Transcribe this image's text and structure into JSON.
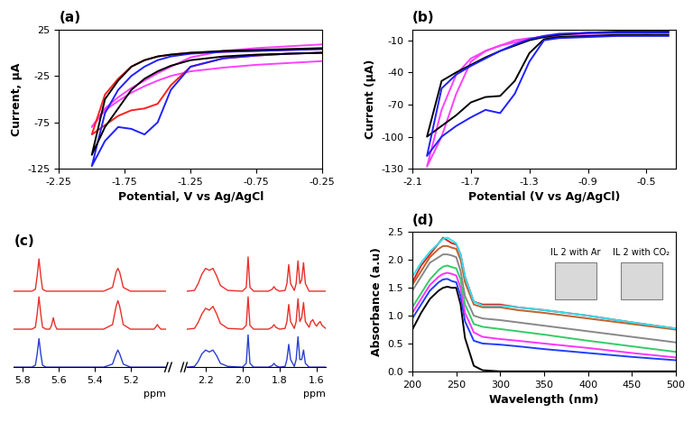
{
  "chart_data": [
    {
      "type": "line",
      "title": "(a)",
      "x_label": "Potential, V vs Ag/AgCl",
      "y_label": "Current, µA",
      "xlim": [
        -2.25,
        -0.25
      ],
      "xticks": [
        -2.25,
        -1.75,
        -1.25,
        -0.75,
        -0.25
      ],
      "ylim": [
        -125,
        25
      ],
      "yticks": [
        -125,
        -75,
        -25,
        25
      ],
      "x": [
        -0.25,
        -0.5,
        -0.75,
        -1.0,
        -1.25,
        -1.4,
        -1.5,
        -1.6,
        -1.7,
        -1.8,
        -1.9,
        -2.0,
        -1.9,
        -1.8,
        -1.7,
        -1.6,
        -1.5,
        -1.4,
        -1.25,
        -1.0,
        -0.75,
        -0.5,
        -0.25
      ],
      "series": [
        {
          "color": "#ff40ff",
          "values": [
            -9,
            -11,
            -13,
            -16,
            -20,
            -25,
            -30,
            -36,
            -43,
            -52,
            -62,
            -80,
            -60,
            -48,
            -38,
            -30,
            -22,
            -15,
            -5,
            2,
            5,
            7,
            9
          ]
        },
        {
          "color": "#ff2020",
          "values": [
            0,
            -1,
            -3,
            -6,
            -15,
            -35,
            -55,
            -60,
            -62,
            -68,
            -78,
            -88,
            -45,
            -28,
            -15,
            -8,
            -4,
            -2,
            0,
            1,
            2,
            3,
            4
          ]
        },
        {
          "color": "#2020ff",
          "values": [
            0,
            -1,
            -3,
            -6,
            -15,
            -40,
            -75,
            -88,
            -82,
            -80,
            -95,
            -122,
            -65,
            -40,
            -25,
            -15,
            -8,
            -4,
            -1,
            1,
            2,
            3,
            4
          ]
        },
        {
          "color": "#000000",
          "values": [
            0,
            -1,
            -2,
            -4,
            -8,
            -14,
            -20,
            -28,
            -40,
            -60,
            -80,
            -110,
            -50,
            -30,
            -15,
            -8,
            -4,
            -2,
            0,
            2,
            3,
            4,
            5
          ]
        }
      ]
    },
    {
      "type": "line",
      "title": "(b)",
      "x_label": "Potential (V vs Ag/AgCl)",
      "y_label": "Current (µA)",
      "xlim": [
        -2.1,
        -0.3
      ],
      "xticks": [
        -2.1,
        -1.7,
        -1.3,
        -0.9,
        -0.5
      ],
      "ylim": [
        -130,
        0
      ],
      "yticks": [
        -130,
        -100,
        -70,
        -40,
        -10
      ],
      "x": [
        -0.35,
        -0.5,
        -0.7,
        -0.9,
        -1.1,
        -1.2,
        -1.3,
        -1.4,
        -1.5,
        -1.6,
        -1.7,
        -1.8,
        -1.9,
        -2.0,
        -1.9,
        -1.8,
        -1.7,
        -1.6,
        -1.5,
        -1.4,
        -1.3,
        -1.2,
        -1.1,
        -0.9,
        -0.7,
        -0.5,
        -0.35
      ],
      "series": [
        {
          "color": "#ff40ff",
          "values": [
            -5,
            -5,
            -6,
            -6,
            -7,
            -7,
            -8,
            -10,
            -15,
            -20,
            -30,
            -60,
            -100,
            -128,
            -75,
            -42,
            -27,
            -20,
            -15,
            -12,
            -9,
            -6,
            -5,
            -4,
            -3,
            -3,
            -2
          ]
        },
        {
          "color": "#000000",
          "values": [
            -5,
            -5,
            -5,
            -6,
            -7,
            -9,
            -22,
            -48,
            -62,
            -63,
            -68,
            -80,
            -90,
            -100,
            -48,
            -40,
            -33,
            -26,
            -20,
            -15,
            -10,
            -7,
            -5,
            -3,
            -2,
            -2,
            -2
          ]
        },
        {
          "color": "#2020ff",
          "values": [
            -6,
            -6,
            -6,
            -7,
            -8,
            -10,
            -30,
            -60,
            -78,
            -75,
            -82,
            -90,
            -100,
            -118,
            -55,
            -42,
            -34,
            -27,
            -20,
            -14,
            -9,
            -6,
            -4,
            -3,
            -3,
            -3,
            -3
          ]
        }
      ]
    },
    {
      "type": "line",
      "title": "(c)",
      "tick_labels": "x",
      "segments": [
        {
          "x_label": "ppm",
          "xlim": [
            5.85,
            5.0
          ],
          "xticks": [
            5.8,
            5.6,
            5.4,
            5.2
          ],
          "x": [
            5.85,
            5.75,
            5.73,
            5.72,
            5.71,
            5.7,
            5.69,
            5.67,
            5.65,
            5.64,
            5.63,
            5.62,
            5.61,
            5.55,
            5.35,
            5.3,
            5.28,
            5.27,
            5.26,
            5.24,
            5.2,
            5.1,
            5.07,
            5.06,
            5.05,
            5.04,
            5.03,
            5.0
          ],
          "series": [
            {
              "color": "#e8302a",
              "values": [
                0,
                0,
                0.05,
                0.4,
                0.85,
                0.4,
                0.05,
                0,
                0,
                0,
                0,
                0,
                0,
                0,
                0,
                0.1,
                0.5,
                0.6,
                0.5,
                0.1,
                0,
                0,
                0,
                0,
                0,
                0,
                0,
                0
              ]
            },
            {
              "color": "#e8302a",
              "values": [
                0,
                0,
                0.05,
                0.4,
                0.85,
                0.4,
                0.05,
                0,
                0,
                0.1,
                0.3,
                0.1,
                0,
                0,
                0,
                0.12,
                0.6,
                0.75,
                0.6,
                0.12,
                0,
                0,
                0,
                0.05,
                0.12,
                0.05,
                0,
                0
              ]
            },
            {
              "color": "#2a3fd0",
              "values": [
                0,
                0,
                0.05,
                0.35,
                0.75,
                0.35,
                0.05,
                0,
                0,
                0,
                0,
                0,
                0,
                0,
                0,
                0.08,
                0.35,
                0.45,
                0.35,
                0.08,
                0,
                0,
                0,
                0,
                0,
                0,
                0,
                0
              ]
            }
          ]
        },
        {
          "x_label": "ppm",
          "xlim": [
            2.3,
            1.55
          ],
          "xticks": [
            2.2,
            2.0,
            1.8,
            1.6
          ],
          "x": [
            2.3,
            2.26,
            2.24,
            2.22,
            2.2,
            2.18,
            2.16,
            2.14,
            2.12,
            2.08,
            2.0,
            1.98,
            1.97,
            1.96,
            1.94,
            1.86,
            1.84,
            1.83,
            1.82,
            1.8,
            1.77,
            1.76,
            1.75,
            1.74,
            1.72,
            1.71,
            1.7,
            1.69,
            1.68,
            1.67,
            1.66,
            1.64,
            1.63,
            1.62,
            1.61,
            1.6,
            1.59,
            1.58,
            1.57,
            1.55
          ],
          "series": [
            {
              "color": "#e8302a",
              "values": [
                0,
                0.02,
                0.2,
                0.45,
                0.6,
                0.55,
                0.6,
                0.4,
                0.15,
                0.02,
                0,
                0.1,
                0.9,
                0.1,
                0,
                0,
                0.05,
                0.12,
                0.05,
                0,
                0.02,
                0.2,
                0.7,
                0.2,
                0.02,
                0.2,
                0.8,
                0.2,
                0.3,
                0.75,
                0.2,
                0,
                0,
                0,
                0,
                0,
                0,
                0,
                0,
                0
              ]
            },
            {
              "color": "#e8302a",
              "values": [
                0,
                0.02,
                0.18,
                0.4,
                0.55,
                0.5,
                0.6,
                0.4,
                0.15,
                0.02,
                0,
                0.1,
                0.85,
                0.1,
                0,
                0,
                0.05,
                0.12,
                0.05,
                0,
                0.02,
                0.2,
                0.65,
                0.2,
                0.02,
                0.2,
                0.8,
                0.2,
                0.3,
                0.7,
                0.2,
                0.05,
                0.2,
                0.25,
                0.15,
                0.08,
                0.15,
                0.2,
                0.1,
                0.02
              ]
            },
            {
              "color": "#2a3fd0",
              "values": [
                0,
                0.02,
                0.15,
                0.35,
                0.45,
                0.4,
                0.45,
                0.3,
                0.1,
                0.02,
                0,
                0.1,
                0.85,
                0.1,
                0,
                0,
                0.04,
                0.1,
                0.04,
                0,
                0.02,
                0.2,
                0.6,
                0.2,
                0.02,
                0.2,
                0.8,
                0.2,
                0.2,
                0.45,
                0.1,
                0,
                0,
                0,
                0,
                0,
                0,
                0,
                0,
                0
              ]
            }
          ]
        }
      ]
    },
    {
      "type": "line",
      "title": "(d)",
      "x_label": "Wavelength (nm)",
      "y_label": "Absorbance (a.u)",
      "xlim": [
        200,
        500
      ],
      "xticks": [
        200,
        250,
        300,
        350,
        400,
        450,
        500
      ],
      "ylim": [
        0,
        2.5
      ],
      "yticks": [
        {
          "value": 0.0,
          "label": "0.0"
        },
        0.5,
        {
          "value": 1.0,
          "label": "1.0"
        },
        1.5,
        {
          "value": 2.0,
          "label": "2.0"
        },
        2.5
      ],
      "annotations": [
        "IL 2 with Ar",
        "IL 2 with CO₂"
      ],
      "x": [
        200,
        210,
        220,
        230,
        235,
        240,
        245,
        250,
        255,
        260,
        270,
        280,
        300,
        320,
        350,
        400,
        450,
        500
      ],
      "series": [
        {
          "color": "#000000",
          "values": [
            0.75,
            1.05,
            1.3,
            1.45,
            1.5,
            1.52,
            1.5,
            1.5,
            1.2,
            0.6,
            0.1,
            0.02,
            0,
            0,
            0,
            0,
            0,
            0
          ]
        },
        {
          "color": "#1f3fff",
          "values": [
            0.95,
            1.2,
            1.45,
            1.6,
            1.65,
            1.66,
            1.62,
            1.6,
            1.35,
            0.9,
            0.55,
            0.5,
            0.48,
            0.45,
            0.4,
            0.33,
            0.26,
            0.2
          ]
        },
        {
          "color": "#ff33ff",
          "values": [
            1.05,
            1.3,
            1.55,
            1.7,
            1.75,
            1.77,
            1.75,
            1.72,
            1.5,
            1.05,
            0.7,
            0.62,
            0.58,
            0.55,
            0.5,
            0.42,
            0.33,
            0.25
          ]
        },
        {
          "color": "#33cc66",
          "values": [
            1.15,
            1.4,
            1.65,
            1.82,
            1.88,
            1.9,
            1.87,
            1.85,
            1.65,
            1.2,
            0.85,
            0.8,
            0.76,
            0.72,
            0.66,
            0.55,
            0.45,
            0.35
          ]
        },
        {
          "color": "#888888",
          "values": [
            1.45,
            1.7,
            1.95,
            2.05,
            2.1,
            2.1,
            2.08,
            2.05,
            1.8,
            1.35,
            1.0,
            0.95,
            0.92,
            0.88,
            0.82,
            0.72,
            0.62,
            0.52
          ]
        },
        {
          "color": "#c0622c",
          "values": [
            1.55,
            1.8,
            2.05,
            2.2,
            2.25,
            2.25,
            2.22,
            2.2,
            2.0,
            1.6,
            1.2,
            1.15,
            1.15,
            1.1,
            1.05,
            0.95,
            0.85,
            0.75
          ]
        },
        {
          "color": "#e02020",
          "values": [
            1.6,
            1.9,
            2.1,
            2.3,
            2.4,
            2.35,
            2.3,
            2.28,
            2.1,
            1.7,
            1.25,
            1.2,
            1.2,
            1.15,
            1.1,
            1.0,
            0.88,
            0.77
          ]
        },
        {
          "color": "#33e0f0",
          "values": [
            1.7,
            1.95,
            2.15,
            2.3,
            2.38,
            2.4,
            2.35,
            2.3,
            2.1,
            1.7,
            1.25,
            1.18,
            1.18,
            1.15,
            1.1,
            1.0,
            0.88,
            0.77
          ]
        }
      ]
    }
  ]
}
